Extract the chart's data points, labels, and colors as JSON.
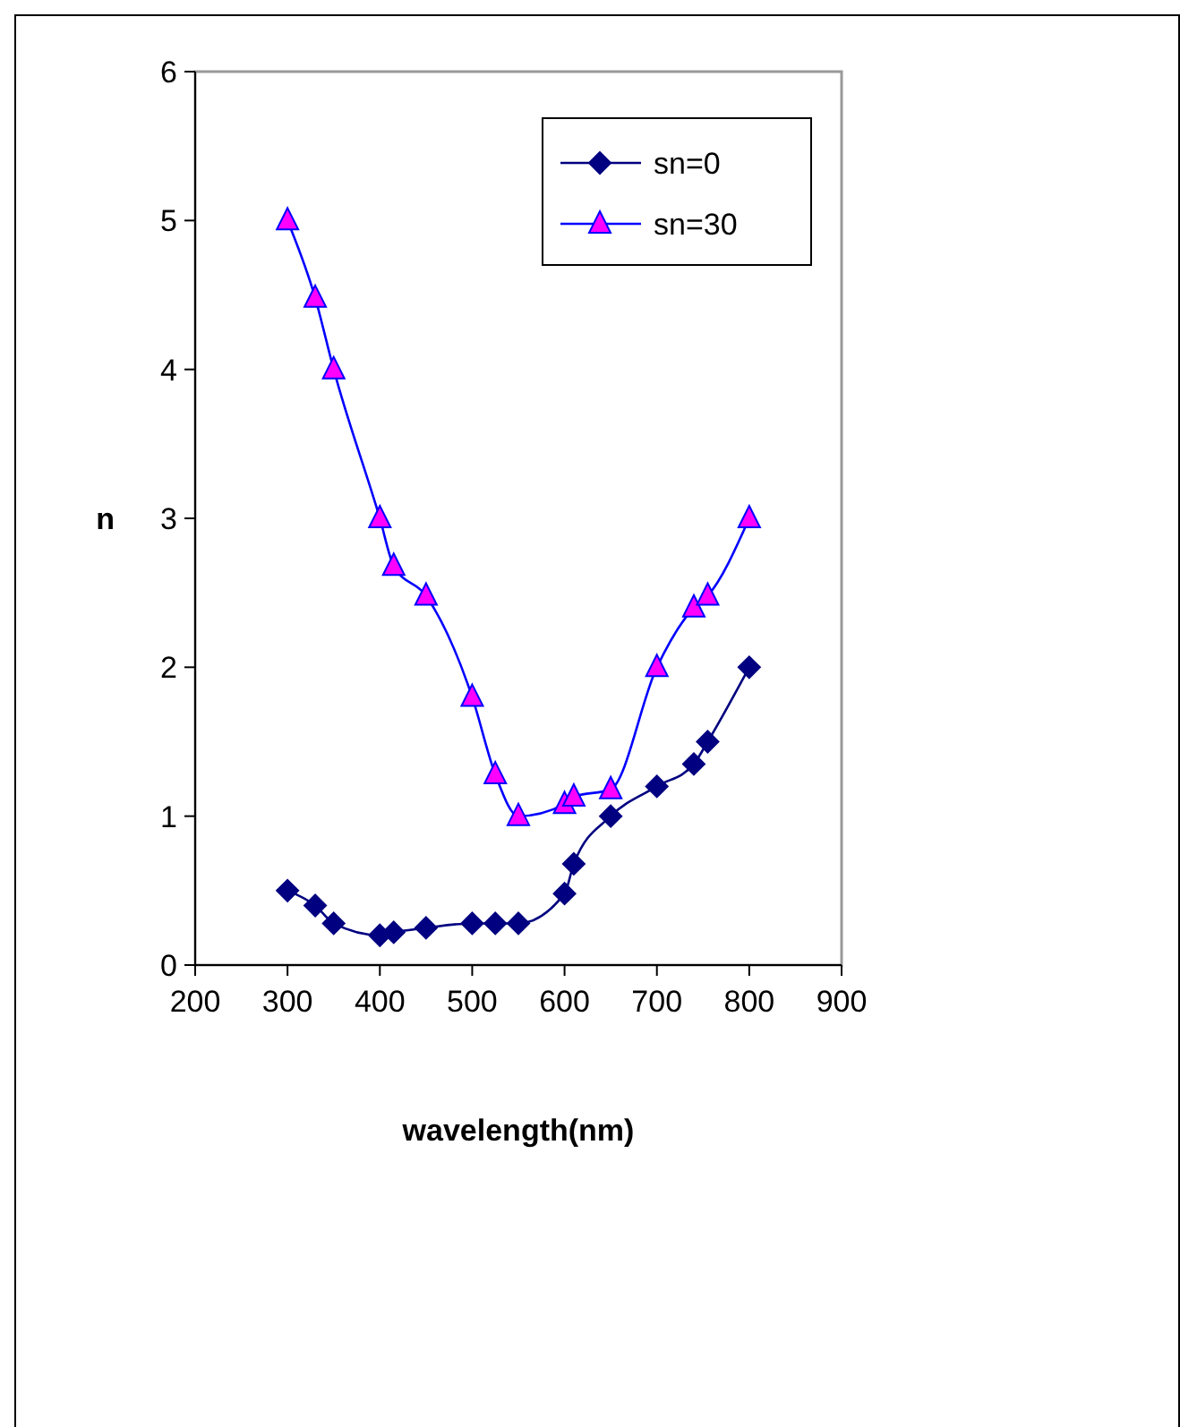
{
  "chart_data": {
    "type": "line",
    "xlabel": "wavelength(nm)",
    "ylabel": "n",
    "xlim": [
      200,
      900
    ],
    "xticks": [
      200,
      300,
      400,
      500,
      600,
      700,
      800,
      900
    ],
    "ylim": [
      0,
      6
    ],
    "yticks": [
      0,
      1,
      2,
      3,
      4,
      5,
      6
    ],
    "grid": false,
    "legend": "top right",
    "line_style": "solid",
    "series": [
      {
        "name": "sn=0",
        "color": "#000080",
        "marker": "diamond",
        "x": [
          300,
          330,
          350,
          400,
          415,
          450,
          500,
          525,
          550,
          600,
          610,
          650,
          700,
          740,
          755,
          800
        ],
        "values": [
          0.5,
          0.4,
          0.28,
          0.2,
          0.22,
          0.25,
          0.28,
          0.28,
          0.28,
          0.48,
          0.68,
          1.0,
          1.2,
          1.35,
          1.5,
          2.0
        ]
      },
      {
        "name": "sn=30",
        "color": "#0000ff",
        "marker": "triangle",
        "x": [
          300,
          330,
          350,
          400,
          415,
          450,
          500,
          525,
          550,
          600,
          610,
          650,
          700,
          740,
          755,
          800
        ],
        "values": [
          5.0,
          4.48,
          4.0,
          3.0,
          2.68,
          2.48,
          1.8,
          1.28,
          1.0,
          1.08,
          1.13,
          1.18,
          2.0,
          2.4,
          2.48,
          3.0
        ]
      }
    ]
  }
}
